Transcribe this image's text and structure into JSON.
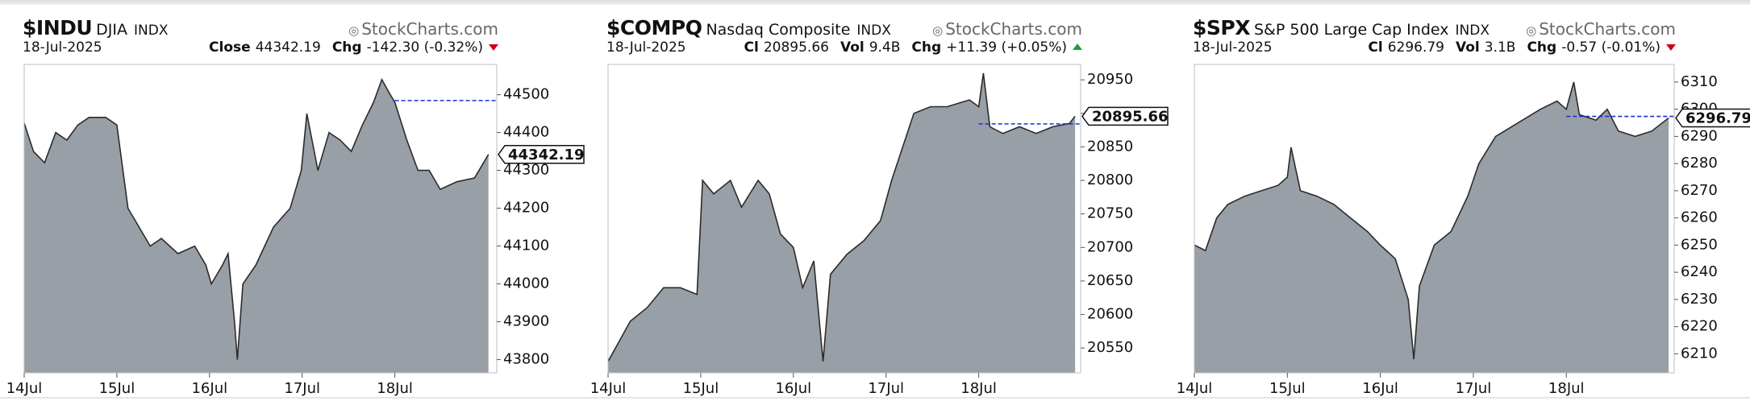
{
  "chart_data": [
    {
      "type": "area",
      "symbol": "$INDU",
      "name": "DJIA",
      "exchange": "INDX",
      "watermark": "StockCharts.com",
      "date": "18-Jul-2025",
      "stats": [
        {
          "label": "Close",
          "value": "44342.19"
        },
        {
          "label": "Chg",
          "value": "-142.30 (-0.32%)"
        }
      ],
      "change_direction": "down",
      "change_color": "#d0021b",
      "x": [
        0,
        0.1,
        0.22,
        0.34,
        0.46,
        0.58,
        0.7,
        0.88,
        1.0,
        1.12,
        1.24,
        1.36,
        1.48,
        1.66,
        1.84,
        1.96,
        2.02,
        2.14,
        2.2,
        2.27,
        2.3,
        2.36,
        2.5,
        2.69,
        2.87,
        2.99,
        3.05,
        3.17,
        3.29,
        3.41,
        3.53,
        3.65,
        3.77,
        3.86,
        3.95,
        4.0,
        4.13,
        4.25,
        4.37,
        4.49,
        4.67,
        4.86,
        5.01
      ],
      "values": [
        44425,
        44350,
        44320,
        44400,
        44380,
        44420,
        44440,
        44440,
        44420,
        44200,
        44150,
        44100,
        44120,
        44080,
        44100,
        44050,
        44000,
        44050,
        44080,
        43900,
        43800,
        44000,
        44050,
        44150,
        44200,
        44300,
        44450,
        44300,
        44400,
        44380,
        44350,
        44420,
        44480,
        44540,
        44500,
        44480,
        44380,
        44300,
        44300,
        44250,
        44270,
        44280,
        44342.19
      ],
      "prev_close": 44484.49,
      "xlim": [
        0,
        5.1
      ],
      "ylim": [
        43765,
        44580
      ],
      "xticks": [
        {
          "value": 0,
          "label": "14Jul"
        },
        {
          "value": 1,
          "label": "15Jul"
        },
        {
          "value": 2,
          "label": "16Jul"
        },
        {
          "value": 3,
          "label": "17Jul"
        },
        {
          "value": 4,
          "label": "18Jul"
        }
      ],
      "yticks": [
        43800,
        43900,
        44000,
        44100,
        44200,
        44300,
        44400,
        44500
      ],
      "color": "#989fa6",
      "line_color": "#2b2b2b",
      "prev_close_color": "#1a2fd6"
    },
    {
      "type": "area",
      "symbol": "$COMPQ",
      "name": "Nasdaq Composite",
      "exchange": "INDX",
      "watermark": "StockCharts.com",
      "date": "18-Jul-2025",
      "stats": [
        {
          "label": "Cl",
          "value": "20895.66"
        },
        {
          "label": "Vol",
          "value": "9.4B"
        },
        {
          "label": "Chg",
          "value": "+11.39 (+0.05%)"
        }
      ],
      "change_direction": "up",
      "change_color": "#1e9e3a",
      "x": [
        0,
        0.12,
        0.24,
        0.42,
        0.6,
        0.78,
        0.96,
        1.02,
        1.14,
        1.32,
        1.44,
        1.62,
        1.74,
        1.86,
        2.0,
        2.1,
        2.22,
        2.32,
        2.4,
        2.58,
        2.76,
        2.94,
        3.06,
        3.18,
        3.3,
        3.48,
        3.66,
        3.9,
        4.0,
        4.05,
        4.12,
        4.26,
        4.44,
        4.62,
        4.8,
        4.98,
        5.04
      ],
      "values": [
        20530,
        20560,
        20590,
        20610,
        20640,
        20640,
        20630,
        20800,
        20780,
        20800,
        20760,
        20800,
        20780,
        20720,
        20700,
        20640,
        20680,
        20530,
        20660,
        20690,
        20710,
        20740,
        20800,
        20850,
        20900,
        20910,
        20910,
        20920,
        20910,
        20960,
        20880,
        20870,
        20880,
        20870,
        20880,
        20885,
        20895.66
      ],
      "prev_close": 20884.27,
      "xlim": [
        0,
        5.1
      ],
      "ylim": [
        20513,
        20973
      ],
      "xticks": [
        {
          "value": 0,
          "label": "14Jul"
        },
        {
          "value": 1,
          "label": "15Jul"
        },
        {
          "value": 2,
          "label": "16Jul"
        },
        {
          "value": 3,
          "label": "17Jul"
        },
        {
          "value": 4,
          "label": "18Jul"
        }
      ],
      "yticks": [
        20550,
        20600,
        20650,
        20700,
        20750,
        20800,
        20850,
        20900,
        20950
      ],
      "color": "#989fa6",
      "line_color": "#2b2b2b",
      "prev_close_color": "#1a2fd6"
    },
    {
      "type": "area",
      "symbol": "$SPX",
      "name": "S&P 500 Large Cap Index",
      "exchange": "INDX",
      "watermark": "StockCharts.com",
      "date": "18-Jul-2025",
      "stats": [
        {
          "label": "Cl",
          "value": "6296.79"
        },
        {
          "label": "Vol",
          "value": "3.1B"
        },
        {
          "label": "Chg",
          "value": "-0.57 (-0.01%)"
        }
      ],
      "change_direction": "down",
      "change_color": "#d0021b",
      "x": [
        0,
        0.12,
        0.24,
        0.36,
        0.54,
        0.72,
        0.9,
        1.0,
        1.04,
        1.14,
        1.32,
        1.5,
        1.68,
        1.86,
        2.0,
        2.16,
        2.3,
        2.36,
        2.42,
        2.58,
        2.76,
        2.94,
        3.06,
        3.24,
        3.48,
        3.72,
        3.9,
        4.0,
        4.08,
        4.14,
        4.32,
        4.44,
        4.56,
        4.74,
        4.92,
        5.1
      ],
      "values": [
        6250,
        6248,
        6260,
        6265,
        6268,
        6270,
        6272,
        6275,
        6286,
        6270,
        6268,
        6265,
        6260,
        6255,
        6250,
        6245,
        6230,
        6208,
        6235,
        6250,
        6255,
        6268,
        6280,
        6290,
        6295,
        6300,
        6303,
        6300,
        6310,
        6298,
        6296,
        6300,
        6292,
        6290,
        6292,
        6296.79
      ],
      "prev_close": 6297.36,
      "xlim": [
        0,
        5.16
      ],
      "ylim": [
        6203,
        6316.5
      ],
      "xticks": [
        {
          "value": 0,
          "label": "14Jul"
        },
        {
          "value": 1,
          "label": "15Jul"
        },
        {
          "value": 2,
          "label": "16Jul"
        },
        {
          "value": 3,
          "label": "17Jul"
        },
        {
          "value": 4,
          "label": "18Jul"
        }
      ],
      "yticks": [
        6210,
        6220,
        6230,
        6240,
        6250,
        6260,
        6270,
        6280,
        6290,
        6300,
        6310
      ],
      "color": "#989fa6",
      "line_color": "#2b2b2b",
      "prev_close_color": "#1a2fd6"
    }
  ]
}
